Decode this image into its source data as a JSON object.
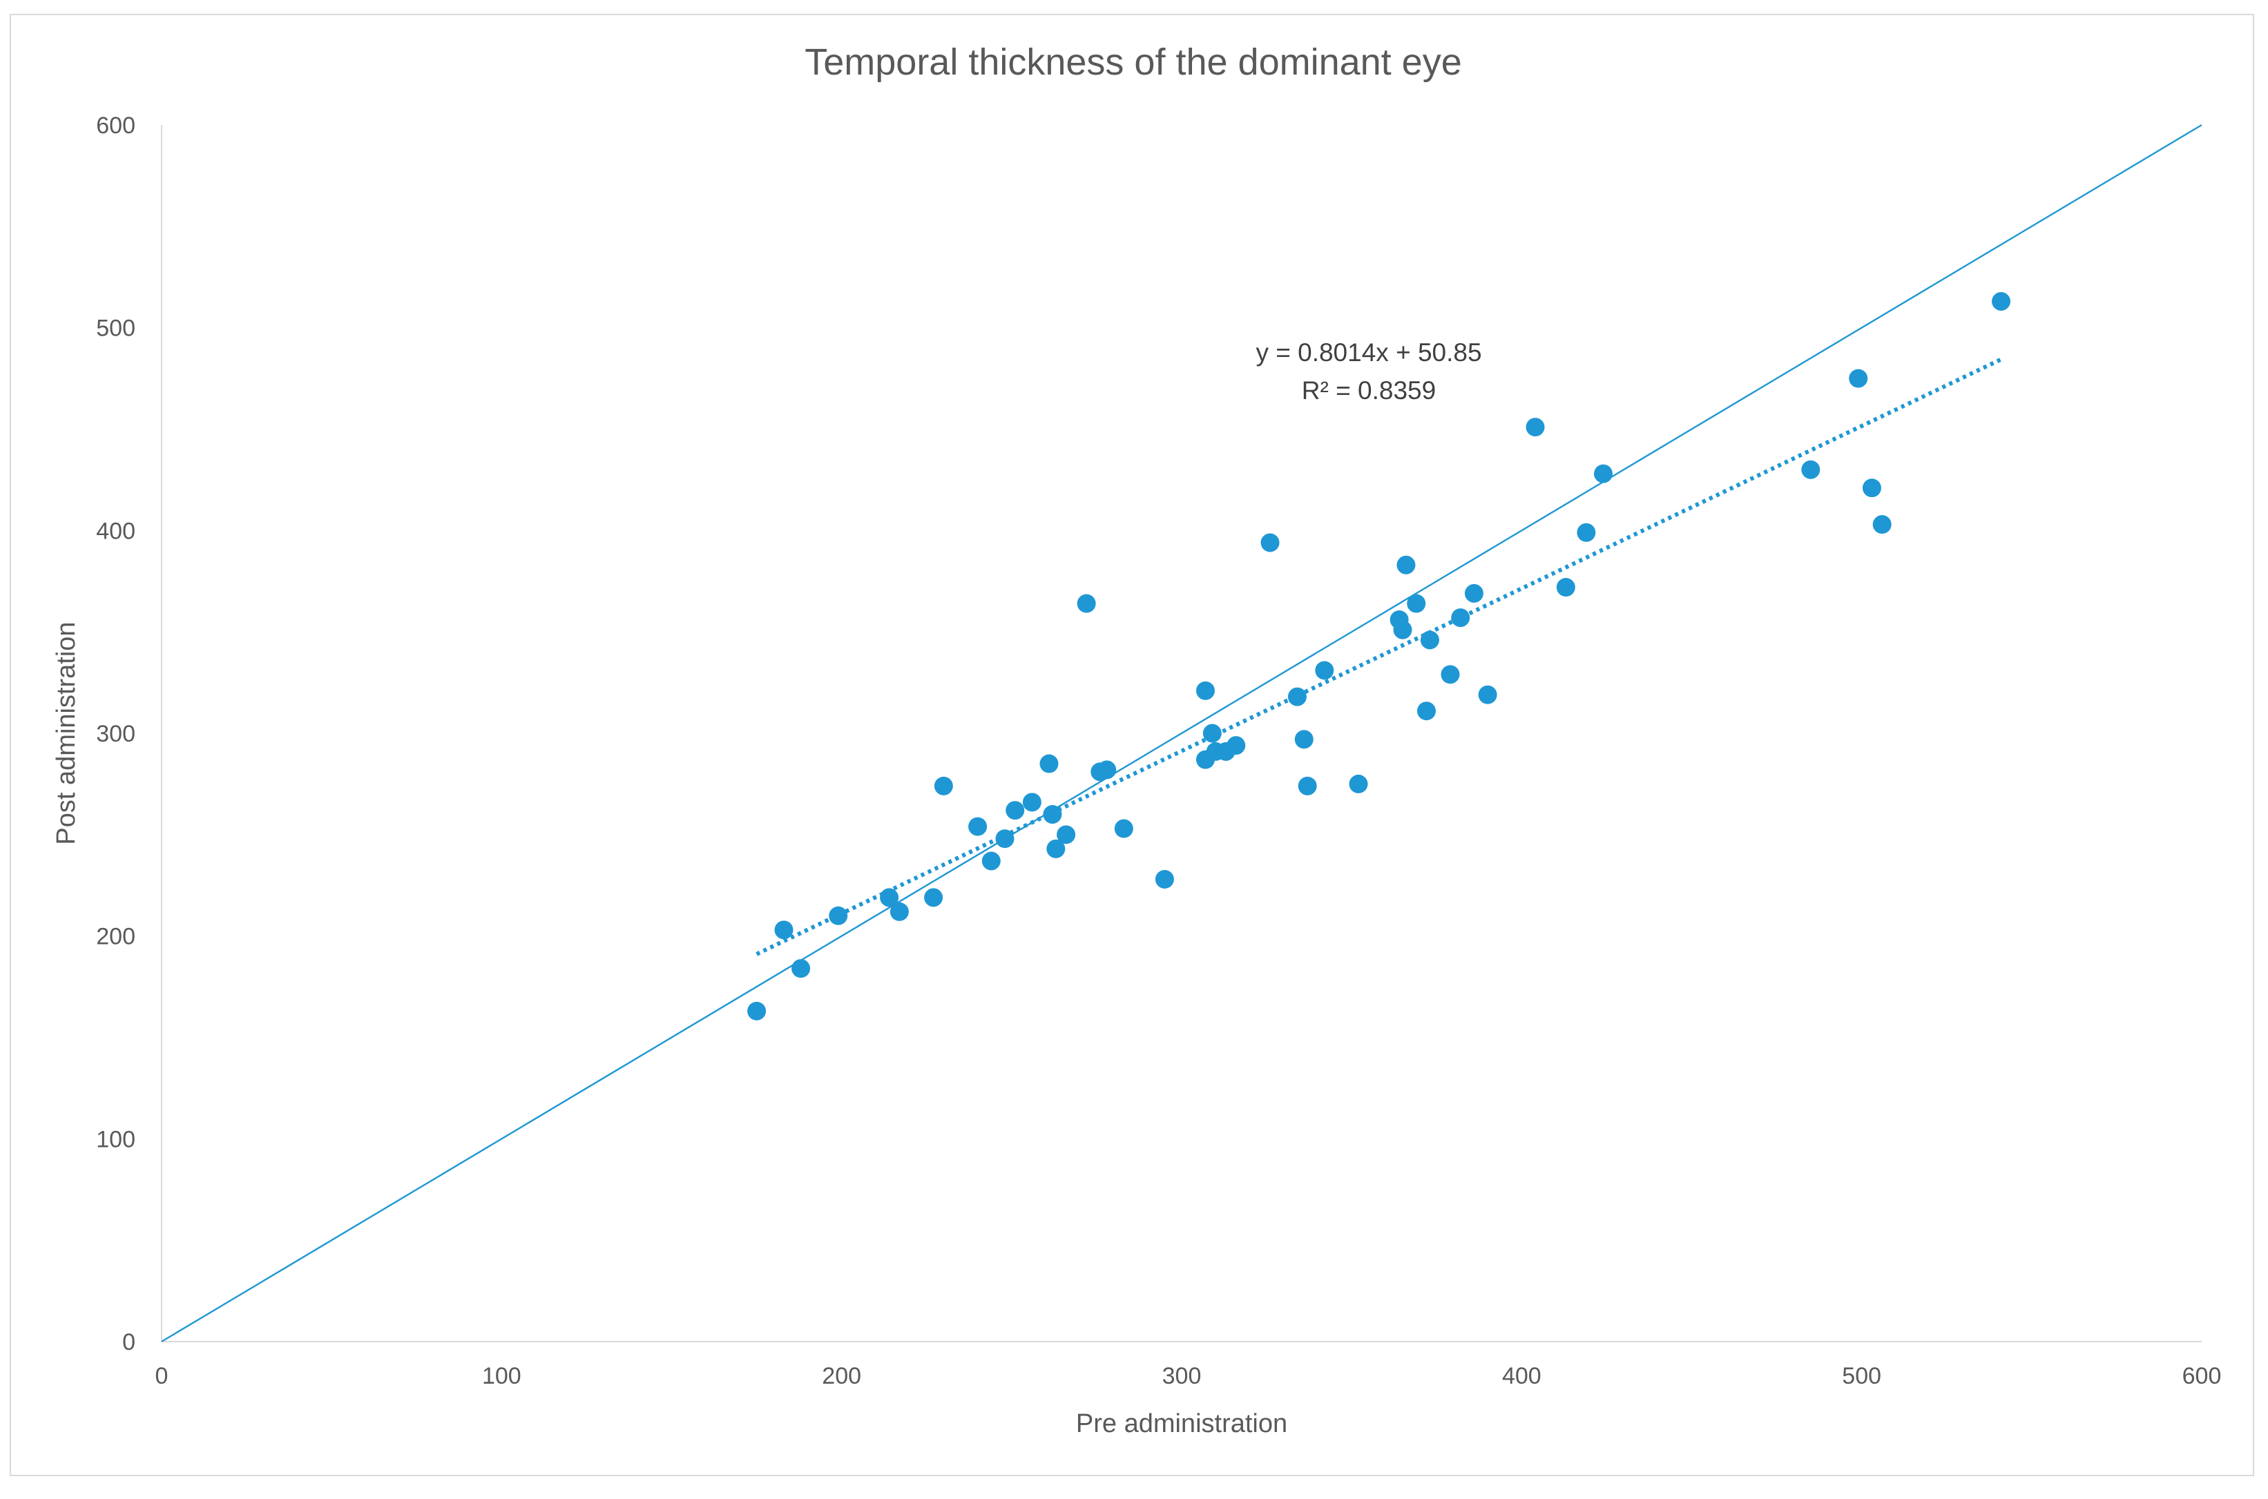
{
  "chart_data": {
    "type": "scatter",
    "title": "Temporal thickness of the dominant eye",
    "xlabel": "Pre administration",
    "ylabel": "Post administration",
    "xlim": [
      0,
      600
    ],
    "ylim": [
      0,
      600
    ],
    "xticks": [
      0,
      100,
      200,
      300,
      400,
      500,
      600
    ],
    "yticks": [
      0,
      100,
      200,
      300,
      400,
      500,
      600
    ],
    "xtick_labels": [
      "0",
      "100",
      "200",
      "300",
      "400",
      "500",
      "600"
    ],
    "ytick_labels": [
      "0",
      "100",
      "200",
      "300",
      "400",
      "500",
      "600"
    ],
    "grid": false,
    "series": [
      {
        "name": "Temporal thickness",
        "color": "#1f97d4",
        "points": [
          [
            175,
            163
          ],
          [
            183,
            203
          ],
          [
            188,
            184
          ],
          [
            199,
            210
          ],
          [
            214,
            219
          ],
          [
            217,
            212
          ],
          [
            227,
            219
          ],
          [
            230,
            274
          ],
          [
            240,
            254
          ],
          [
            244,
            237
          ],
          [
            248,
            248
          ],
          [
            251,
            262
          ],
          [
            256,
            266
          ],
          [
            261,
            285
          ],
          [
            262,
            260
          ],
          [
            263,
            243
          ],
          [
            266,
            250
          ],
          [
            272,
            364
          ],
          [
            276,
            281
          ],
          [
            278,
            282
          ],
          [
            283,
            253
          ],
          [
            295,
            228
          ],
          [
            307,
            321
          ],
          [
            307,
            287
          ],
          [
            309,
            300
          ],
          [
            310,
            291
          ],
          [
            313,
            291
          ],
          [
            316,
            294
          ],
          [
            326,
            394
          ],
          [
            334,
            318
          ],
          [
            336,
            297
          ],
          [
            337,
            274
          ],
          [
            342,
            331
          ],
          [
            352,
            275
          ],
          [
            364,
            356
          ],
          [
            365,
            351
          ],
          [
            366,
            383
          ],
          [
            369,
            364
          ],
          [
            372,
            311
          ],
          [
            373,
            346
          ],
          [
            379,
            329
          ],
          [
            382,
            357
          ],
          [
            386,
            369
          ],
          [
            390,
            319
          ],
          [
            404,
            451
          ],
          [
            413,
            372
          ],
          [
            419,
            399
          ],
          [
            424,
            428
          ],
          [
            485,
            430
          ],
          [
            499,
            475
          ],
          [
            503,
            421
          ],
          [
            506,
            403
          ],
          [
            541,
            513
          ]
        ]
      }
    ],
    "reference_line": {
      "name": "y = x",
      "color": "#1f97d4",
      "x": [
        0,
        600
      ],
      "y": [
        0,
        600
      ]
    },
    "trendline": {
      "type": "linear",
      "slope": 0.8014,
      "intercept": 50.85,
      "x_range": [
        175,
        541
      ],
      "color": "#1f97d4",
      "style": "dotted"
    },
    "annotations": {
      "equation": "y = 0.8014x + 50.85",
      "r_squared": "R² = 0.8359"
    }
  }
}
